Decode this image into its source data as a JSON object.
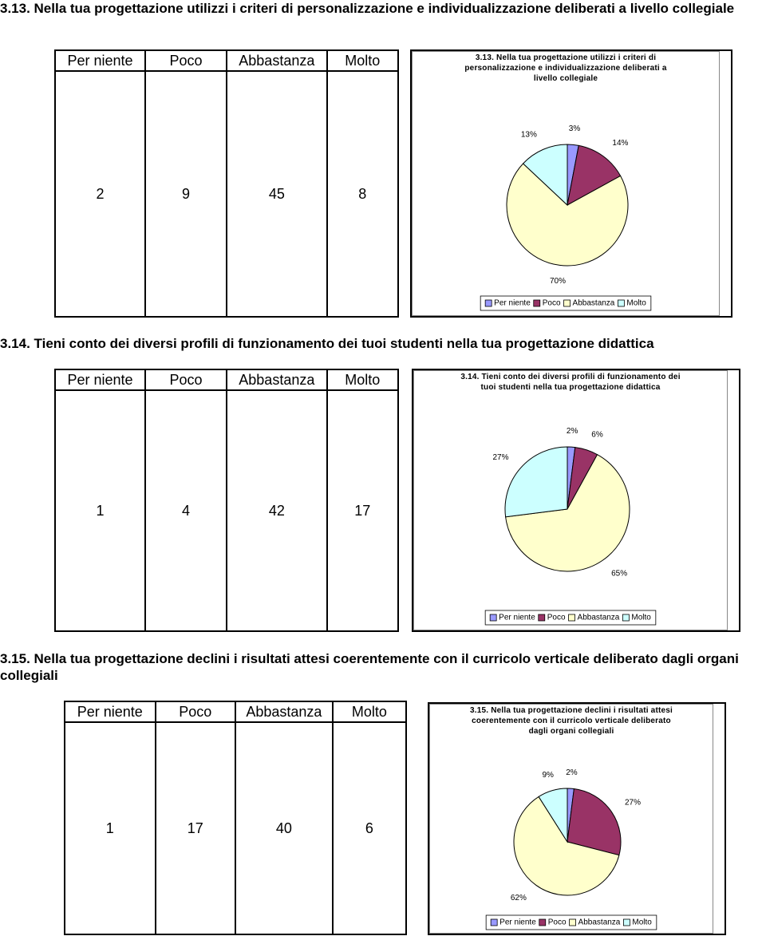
{
  "sections": [
    {
      "heading": "3.13. Nella tua progettazione utilizzi i criteri di personalizzazione e individualizzazione deliberati a livello collegiale",
      "table": {
        "header": [
          "Per niente",
          "Poco",
          "Abbastanza",
          "Molto"
        ],
        "row": [
          "2",
          "9",
          "45",
          "8"
        ]
      },
      "chart": {
        "type": "pie",
        "title": "3.13. Nella tua progettazione utilizzi i criteri di personalizzazione e individualizzazione deliberati a livello collegiale",
        "categories": [
          "Per niente",
          "Poco",
          "Abbastanza",
          "Molto"
        ],
        "values": [
          3,
          14,
          70,
          13
        ],
        "value_labels": [
          "3%",
          "14%",
          "70%",
          "13%"
        ],
        "colors": [
          "#9999ff",
          "#993366",
          "#ffffcc",
          "#ccffff"
        ]
      }
    },
    {
      "heading": "3.14. Tieni conto dei diversi profili di funzionamento dei tuoi studenti nella tua progettazione didattica",
      "table": {
        "header": [
          "Per niente",
          "Poco",
          "Abbastanza",
          "Molto"
        ],
        "row": [
          "1",
          "4",
          "42",
          "17"
        ]
      },
      "chart": {
        "type": "pie",
        "title": "3.14. Tieni conto dei diversi profili di funzionamento dei tuoi studenti nella tua progettazione didattica",
        "categories": [
          "Per niente",
          "Poco",
          "Abbastanza",
          "Molto"
        ],
        "values": [
          2,
          6,
          65,
          27
        ],
        "value_labels": [
          "2%",
          "6%",
          "65%",
          "27%"
        ],
        "colors": [
          "#9999ff",
          "#993366",
          "#ffffcc",
          "#ccffff"
        ]
      }
    },
    {
      "heading": "3.15. Nella tua progettazione declini i risultati attesi coerentemente con il curricolo verticale deliberato dagli organi collegiali",
      "table": {
        "header": [
          "Per niente",
          "Poco",
          "Abbastanza",
          "Molto"
        ],
        "row": [
          "1",
          "17",
          "40",
          "6"
        ]
      },
      "chart": {
        "type": "pie",
        "title": "3.15. Nella tua progettazione declini i risultati attesi coerentemente con il curricolo verticale deliberato dagli organi collegiali",
        "categories": [
          "Per niente",
          "Poco",
          "Abbastanza",
          "Molto"
        ],
        "values": [
          2,
          27,
          62,
          9
        ],
        "value_labels": [
          "2%",
          "27%",
          "62%",
          "9%"
        ],
        "colors": [
          "#9999ff",
          "#993366",
          "#ffffcc",
          "#ccffff"
        ]
      }
    }
  ]
}
